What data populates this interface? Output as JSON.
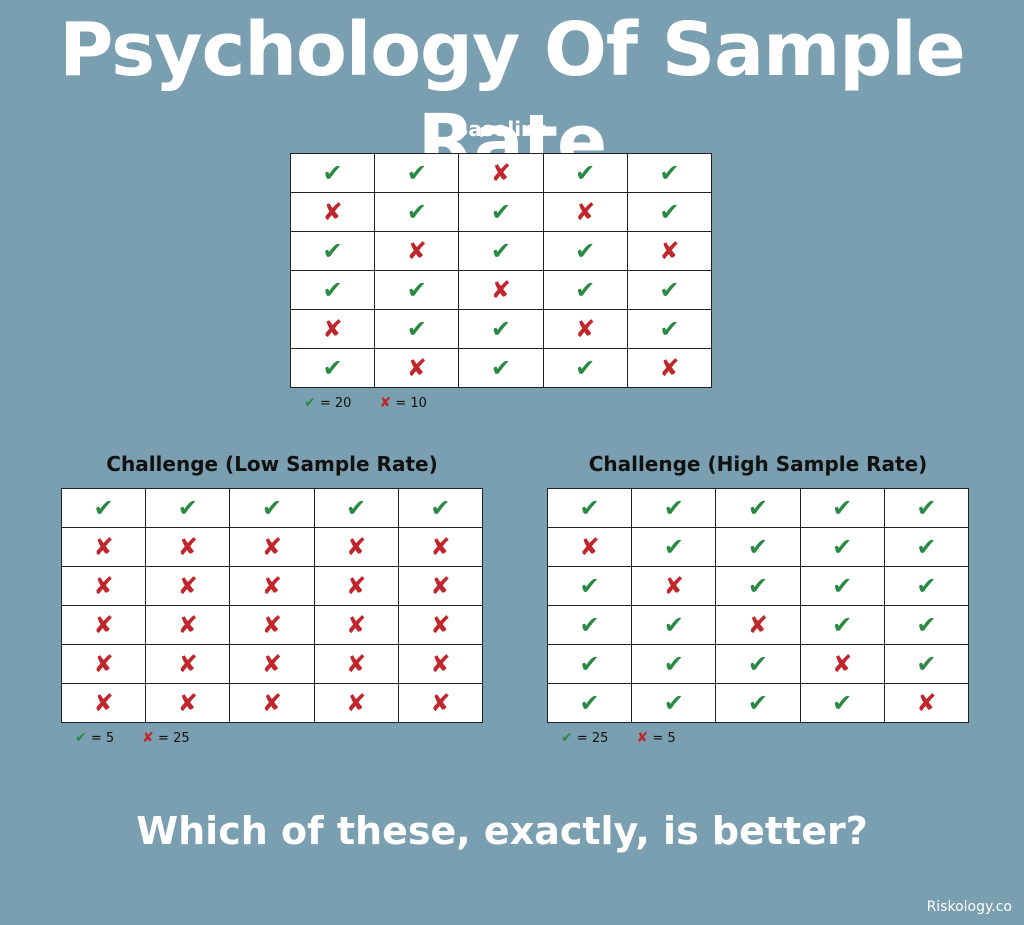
{
  "title": "Psychology Of Sample Rate",
  "symbols": {
    "check": "✔",
    "cross": "✘"
  },
  "colors": {
    "background": "#7a9fb0",
    "check": "#2a8a44",
    "cross": "#c0262c"
  },
  "panels": [
    {
      "id": "baseline",
      "title": "Baseline",
      "grid": [
        [
          "check",
          "check",
          "cross",
          "check",
          "check"
        ],
        [
          "cross",
          "check",
          "check",
          "cross",
          "check"
        ],
        [
          "check",
          "cross",
          "check",
          "check",
          "cross"
        ],
        [
          "check",
          "check",
          "cross",
          "check",
          "check"
        ],
        [
          "cross",
          "check",
          "check",
          "cross",
          "check"
        ],
        [
          "check",
          "cross",
          "check",
          "check",
          "cross"
        ]
      ],
      "legend": {
        "check_count": "= 20",
        "cross_count": "= 10"
      }
    },
    {
      "id": "low",
      "title": "Challenge (Low Sample Rate)",
      "grid": [
        [
          "check",
          "check",
          "check",
          "check",
          "check"
        ],
        [
          "cross",
          "cross",
          "cross",
          "cross",
          "cross"
        ],
        [
          "cross",
          "cross",
          "cross",
          "cross",
          "cross"
        ],
        [
          "cross",
          "cross",
          "cross",
          "cross",
          "cross"
        ],
        [
          "cross",
          "cross",
          "cross",
          "cross",
          "cross"
        ],
        [
          "cross",
          "cross",
          "cross",
          "cross",
          "cross"
        ]
      ],
      "legend": {
        "check_count": "= 5",
        "cross_count": "= 25"
      }
    },
    {
      "id": "high",
      "title": "Challenge (High Sample Rate)",
      "grid": [
        [
          "check",
          "check",
          "check",
          "check",
          "check"
        ],
        [
          "cross",
          "check",
          "check",
          "check",
          "check"
        ],
        [
          "check",
          "cross",
          "check",
          "check",
          "check"
        ],
        [
          "check",
          "check",
          "cross",
          "check",
          "check"
        ],
        [
          "check",
          "check",
          "check",
          "cross",
          "check"
        ],
        [
          "check",
          "check",
          "check",
          "check",
          "cross"
        ]
      ],
      "legend": {
        "check_count": "= 25",
        "cross_count": "= 5"
      }
    }
  ],
  "question": "Which of these, exactly, is better?",
  "credit": "Riskology.co"
}
